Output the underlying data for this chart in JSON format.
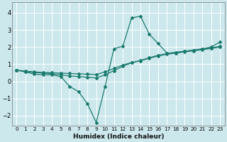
{
  "title": "",
  "xlabel": "Humidex (Indice chaleur)",
  "ylabel": "",
  "background_color": "#cce8ec",
  "grid_color": "#ffffff",
  "line_color": "#1a7a6e",
  "xlim": [
    -0.5,
    23.5
  ],
  "ylim": [
    -2.6,
    4.6
  ],
  "yticks": [
    -2,
    -1,
    0,
    1,
    2,
    3,
    4
  ],
  "xticks": [
    0,
    1,
    2,
    3,
    4,
    5,
    6,
    7,
    8,
    9,
    10,
    11,
    12,
    13,
    14,
    15,
    16,
    17,
    18,
    19,
    20,
    21,
    22,
    23
  ],
  "series": [
    {
      "x": [
        0,
        1,
        2,
        3,
        4,
        5,
        6,
        7,
        8,
        9,
        10,
        11,
        12,
        13,
        14,
        15,
        16,
        17,
        18,
        19,
        20,
        21,
        22,
        23
      ],
      "y": [
        0.65,
        0.6,
        0.55,
        0.52,
        0.5,
        0.48,
        0.46,
        0.44,
        0.42,
        0.4,
        0.55,
        0.75,
        0.95,
        1.1,
        1.2,
        1.35,
        1.48,
        1.58,
        1.65,
        1.72,
        1.78,
        1.85,
        1.92,
        2.0
      ]
    },
    {
      "x": [
        0,
        1,
        2,
        3,
        4,
        5,
        6,
        7,
        8,
        9,
        10,
        11,
        12,
        13,
        14,
        15,
        16,
        17,
        18,
        19,
        20,
        21,
        22,
        23
      ],
      "y": [
        0.65,
        0.58,
        0.52,
        0.48,
        0.44,
        0.38,
        0.32,
        0.28,
        0.24,
        0.2,
        0.38,
        0.62,
        0.88,
        1.08,
        1.22,
        1.38,
        1.52,
        1.62,
        1.7,
        1.76,
        1.82,
        1.88,
        1.94,
        2.05
      ]
    },
    {
      "x": [
        0,
        1,
        2,
        3,
        4,
        5,
        6,
        7,
        8,
        9,
        10,
        11,
        12,
        13,
        14,
        15,
        16,
        17,
        18,
        19,
        20,
        21,
        22,
        23
      ],
      "y": [
        0.65,
        0.55,
        0.42,
        0.38,
        0.38,
        0.28,
        -0.3,
        -0.6,
        -1.3,
        -2.4,
        -0.3,
        1.9,
        2.05,
        3.7,
        3.8,
        2.75,
        2.2,
        1.65,
        1.65,
        1.75,
        1.82,
        1.9,
        2.0,
        2.3
      ]
    }
  ]
}
